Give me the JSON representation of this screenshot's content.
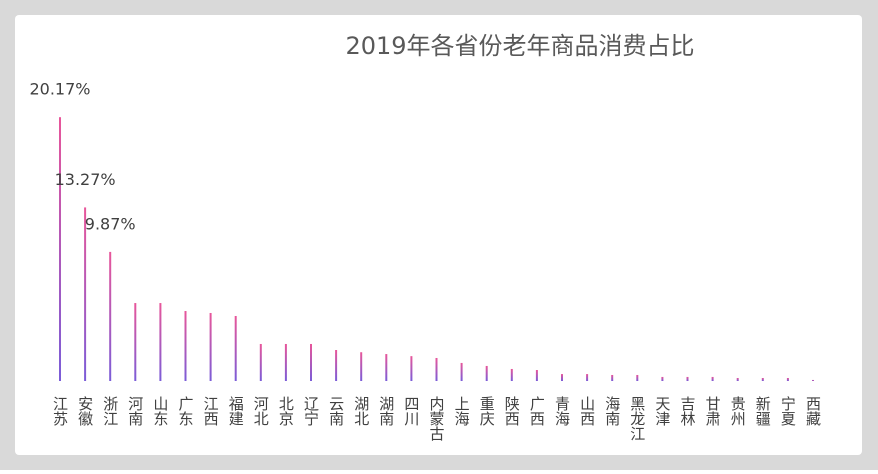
{
  "chart_data": {
    "type": "bar",
    "title": "2019年各省份老年商品消费占比",
    "categories": [
      "江苏",
      "安徽",
      "浙江",
      "河南",
      "山东",
      "广东",
      "江西",
      "福建",
      "河北",
      "北京",
      "辽宁",
      "云南",
      "湖北",
      "湖南",
      "四川",
      "内蒙古",
      "上海",
      "重庆",
      "陕西",
      "广西",
      "青海",
      "山西",
      "海南",
      "黑龙江",
      "天津",
      "吉林",
      "甘肃",
      "贵州",
      "新疆",
      "宁夏",
      "西藏"
    ],
    "values": [
      20.17,
      13.27,
      9.87,
      5.96,
      5.96,
      5.35,
      5.2,
      4.97,
      2.83,
      2.83,
      2.83,
      2.37,
      2.2,
      2.06,
      1.9,
      1.76,
      1.38,
      1.15,
      0.92,
      0.84,
      0.53,
      0.53,
      0.46,
      0.46,
      0.31,
      0.31,
      0.31,
      0.23,
      0.23,
      0.23,
      0.08
    ],
    "value_labels": [
      "20.17%",
      "13.27%",
      "9.87%",
      null,
      null,
      null,
      null,
      null,
      null,
      null,
      null,
      null,
      null,
      null,
      null,
      null,
      null,
      null,
      null,
      null,
      null,
      null,
      null,
      null,
      null,
      null,
      null,
      null,
      null,
      null,
      null
    ],
    "color": "#e8569a",
    "gradient_color": "#7a5cd8",
    "ylim": [
      0,
      25
    ],
    "grid": false
  }
}
